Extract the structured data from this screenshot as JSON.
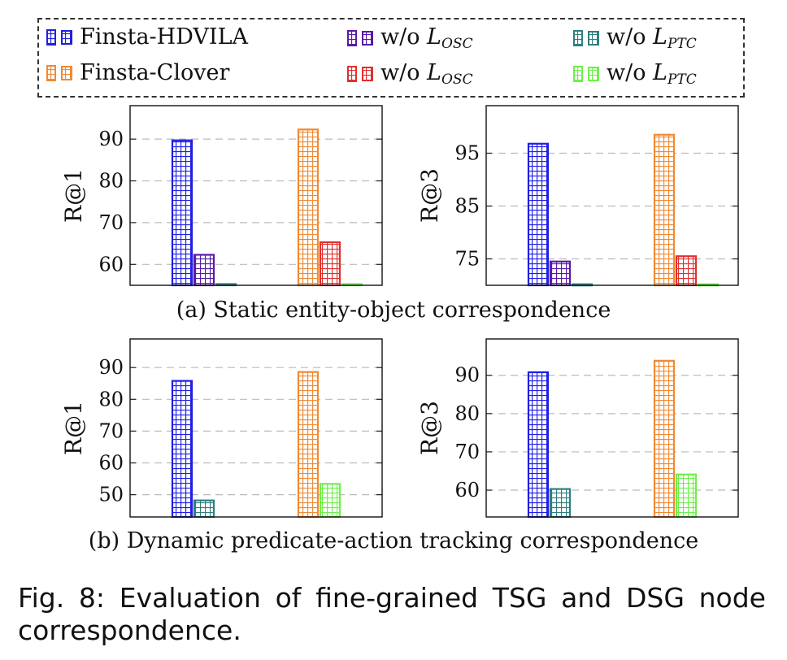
{
  "legend": {
    "items": [
      {
        "label": "Finsta-HDVILA",
        "sub": "",
        "color": "#1f1fe6"
      },
      {
        "label": "w/o L",
        "sub": "OSC",
        "color": "#5a1aa8"
      },
      {
        "label": "w/o L",
        "sub": "PTC",
        "color": "#2f7f7f"
      },
      {
        "label": "Finsta-Clover",
        "sub": "",
        "color": "#f08a33"
      },
      {
        "label": "w/o L",
        "sub": "OSC",
        "color": "#e03030"
      },
      {
        "label": "w/o L",
        "sub": "PTC",
        "color": "#6ef04a"
      }
    ]
  },
  "captions": {
    "a": "(a) Static entity-object correspondence",
    "b": "(b) Dynamic predicate-action tracking correspondence",
    "fig_line1": "Fig. 8: Evaluation of fine-grained TSG and DSG node",
    "fig_line2": "correspondence."
  },
  "chart_data": [
    {
      "type": "bar",
      "panel": "a-left",
      "ylabel": "R@1",
      "ylim": [
        55,
        98
      ],
      "yticks": [
        60,
        70,
        80,
        90
      ],
      "series": [
        {
          "name": "Finsta-HDVILA",
          "group": 0,
          "value": 89.7,
          "color": "#1f1fe6"
        },
        {
          "name": "w/o L_OSC",
          "group": 0,
          "value": 62.3,
          "color": "#5a1aa8"
        },
        {
          "name": "w/o L_PTC",
          "group": 0,
          "value": 55.3,
          "color": "#2f7f7f"
        },
        {
          "name": "Finsta-Clover",
          "group": 1,
          "value": 92.3,
          "color": "#f08a33"
        },
        {
          "name": "w/o L_OSC",
          "group": 1,
          "value": 65.3,
          "color": "#e03030"
        },
        {
          "name": "w/o L_PTC",
          "group": 1,
          "value": 55.3,
          "color": "#6ef04a"
        }
      ]
    },
    {
      "type": "bar",
      "panel": "a-right",
      "ylabel": "R@3",
      "ylim": [
        70,
        104
      ],
      "yticks": [
        75,
        85,
        95
      ],
      "series": [
        {
          "name": "Finsta-HDVILA",
          "group": 0,
          "value": 96.8,
          "color": "#1f1fe6"
        },
        {
          "name": "w/o L_OSC",
          "group": 0,
          "value": 74.5,
          "color": "#5a1aa8"
        },
        {
          "name": "w/o L_PTC",
          "group": 0,
          "value": 70.2,
          "color": "#2f7f7f"
        },
        {
          "name": "Finsta-Clover",
          "group": 1,
          "value": 98.5,
          "color": "#f08a33"
        },
        {
          "name": "w/o L_OSC",
          "group": 1,
          "value": 75.5,
          "color": "#e03030"
        },
        {
          "name": "w/o L_PTC",
          "group": 1,
          "value": 70.2,
          "color": "#6ef04a"
        }
      ]
    },
    {
      "type": "bar",
      "panel": "b-left",
      "ylabel": "R@1",
      "ylim": [
        43,
        99
      ],
      "yticks": [
        50,
        60,
        70,
        80,
        90
      ],
      "series": [
        {
          "name": "Finsta-HDVILA",
          "group": 0,
          "value": 85.8,
          "color": "#1f1fe6"
        },
        {
          "name": "w/o L_PTC",
          "group": 0,
          "value": 48.2,
          "color": "#2f7f7f"
        },
        {
          "name": "Finsta-Clover",
          "group": 1,
          "value": 88.6,
          "color": "#f08a33"
        },
        {
          "name": "w/o L_PTC",
          "group": 1,
          "value": 53.4,
          "color": "#6ef04a"
        }
      ]
    },
    {
      "type": "bar",
      "panel": "b-right",
      "ylabel": "R@3",
      "ylim": [
        53,
        99.5
      ],
      "yticks": [
        60,
        70,
        80,
        90
      ],
      "series": [
        {
          "name": "Finsta-HDVILA",
          "group": 0,
          "value": 90.8,
          "color": "#1f1fe6"
        },
        {
          "name": "w/o L_PTC",
          "group": 0,
          "value": 60.3,
          "color": "#2f7f7f"
        },
        {
          "name": "Finsta-Clover",
          "group": 1,
          "value": 93.8,
          "color": "#f08a33"
        },
        {
          "name": "w/o L_PTC",
          "group": 1,
          "value": 64.1,
          "color": "#6ef04a"
        }
      ]
    }
  ]
}
